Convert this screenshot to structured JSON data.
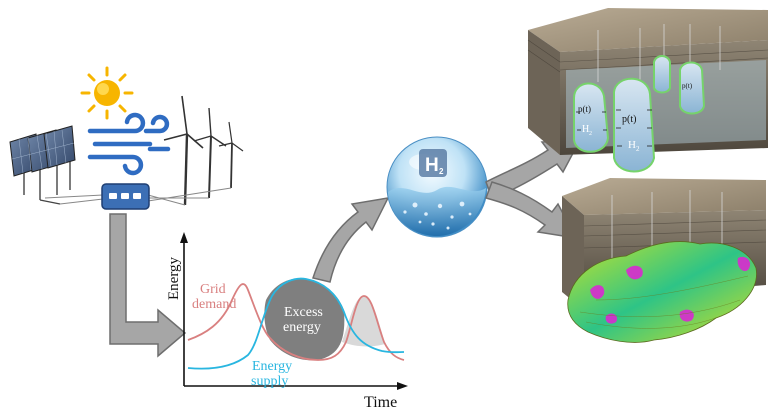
{
  "graph": {
    "y_axis_label": "Energy",
    "x_axis_label": "Time",
    "demand_label_line1": "Grid",
    "demand_label_line2": "demand",
    "supply_label_line1": "Energy",
    "supply_label_line2": "supply",
    "excess_label_line1": "Excess",
    "excess_label_line2": "energy"
  },
  "hydrogen": {
    "symbol": "H",
    "subscript": "2"
  },
  "storage": {
    "pressure_label": "p(t)",
    "gas_symbol": "H",
    "gas_subscript": "2"
  },
  "colors": {
    "demand_curve": "#d98080",
    "supply_curve": "#29b6e0",
    "excess_fill": "#7f7f7f",
    "arrow_fill": "#a6a6a6",
    "arrow_stroke": "#6e6e6e",
    "inverter": "#3c6fb5",
    "wind_gust": "#2f6cc2",
    "sun": "#f7b500",
    "bubble_outline": "#76d36b"
  }
}
